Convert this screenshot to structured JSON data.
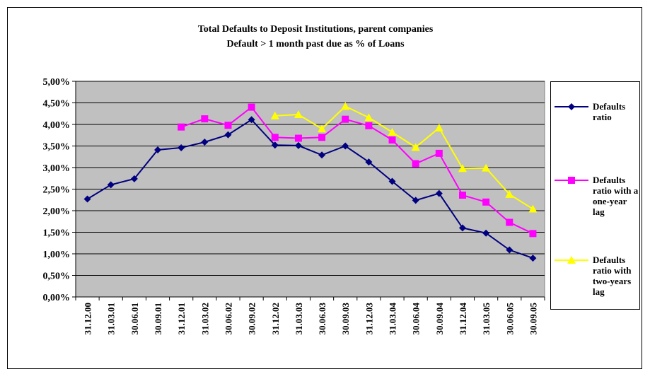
{
  "chart_data": {
    "type": "line",
    "title": "Total Defaults to Deposit Institutions, parent companies",
    "subtitle": "Default > 1 month past due as % of Loans",
    "categories": [
      "31.12.00",
      "31.03.01",
      "30.06.01",
      "30.09.01",
      "31.12.01",
      "31.03.02",
      "30.06.02",
      "30.09.02",
      "31.12.02",
      "31.03.03",
      "30.06.03",
      "30.09.03",
      "31.12.03",
      "31.03.04",
      "30.06.04",
      "30.09.04",
      "31.12.04",
      "31.03.05",
      "30.06.05",
      "30.09.05"
    ],
    "series": [
      {
        "name": "Defaults ratio",
        "color": "#000080",
        "marker": "diamond",
        "values": [
          2.27,
          2.6,
          2.74,
          3.41,
          3.46,
          3.59,
          3.76,
          4.11,
          3.52,
          3.51,
          3.29,
          3.5,
          3.13,
          2.68,
          2.24,
          2.4,
          1.6,
          1.48,
          1.09,
          0.9
        ]
      },
      {
        "name": "Defaults ratio with a one-year lag",
        "color": "#ff00ff",
        "marker": "square",
        "values": [
          null,
          null,
          null,
          null,
          3.94,
          4.13,
          3.98,
          4.4,
          3.7,
          3.68,
          3.7,
          4.12,
          3.97,
          3.64,
          3.09,
          3.33,
          2.36,
          2.2,
          1.73,
          1.47
        ]
      },
      {
        "name": "Defaults ratio with two-years lag",
        "color": "#ffff00",
        "marker": "triangle",
        "values": [
          null,
          null,
          null,
          null,
          null,
          null,
          null,
          null,
          4.2,
          4.23,
          3.9,
          4.42,
          4.16,
          3.82,
          3.47,
          3.92,
          2.98,
          2.99,
          2.38,
          2.04
        ]
      }
    ],
    "ylim": [
      0,
      5
    ],
    "yticks": [
      {
        "value": 0,
        "label": "0,00%"
      },
      {
        "value": 0.5,
        "label": "0,50%"
      },
      {
        "value": 1,
        "label": "1,00%"
      },
      {
        "value": 1.5,
        "label": "1,50%"
      },
      {
        "value": 2,
        "label": "2,00%"
      },
      {
        "value": 2.5,
        "label": "2,50%"
      },
      {
        "value": 3,
        "label": "3,00%"
      },
      {
        "value": 3.5,
        "label": "3,50%"
      },
      {
        "value": 4,
        "label": "4,00%"
      },
      {
        "value": 4.5,
        "label": "4,50%"
      },
      {
        "value": 5,
        "label": "5,00%"
      }
    ],
    "grid": true,
    "plot_background": "#c0c0c0",
    "legend": "right"
  }
}
